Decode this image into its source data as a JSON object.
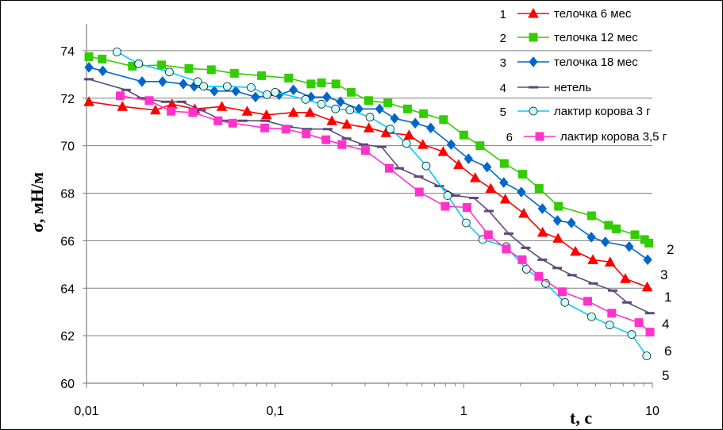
{
  "chart_data": {
    "type": "line",
    "xscale": "log",
    "xlim": [
      0.01,
      10
    ],
    "ylim": [
      60,
      75
    ],
    "xticks": [
      0.01,
      0.1,
      1,
      10
    ],
    "xtick_labels": [
      "0,01",
      "0,1",
      "1",
      "10"
    ],
    "yticks": [
      60,
      62,
      64,
      66,
      68,
      70,
      72,
      74
    ],
    "ytick_labels": [
      "60",
      "62",
      "64",
      "66",
      "68",
      "70",
      "72",
      "74"
    ],
    "xlabel": "t, c",
    "ylabel": "σ, мН/м",
    "grid": "horizontal",
    "legend_position": "top-right",
    "series": [
      {
        "id": "1",
        "name": "телочка 6 мес",
        "color": "#ff0000",
        "marker": "triangle",
        "end_label": "1",
        "points": [
          [
            0.0103,
            71.85
          ],
          [
            0.0155,
            71.65
          ],
          [
            0.0232,
            71.5
          ],
          [
            0.0284,
            71.75
          ],
          [
            0.0375,
            71.55
          ],
          [
            0.0522,
            71.65
          ],
          [
            0.0711,
            71.45
          ],
          [
            0.09,
            71.3
          ],
          [
            0.125,
            71.4
          ],
          [
            0.153,
            71.4
          ],
          [
            0.2,
            71.05
          ],
          [
            0.24,
            70.9
          ],
          [
            0.314,
            70.75
          ],
          [
            0.387,
            70.55
          ],
          [
            0.513,
            70.45
          ],
          [
            0.607,
            70.05
          ],
          [
            0.778,
            69.75
          ],
          [
            0.94,
            69.2
          ],
          [
            1.15,
            68.65
          ],
          [
            1.39,
            68.2
          ],
          [
            1.66,
            67.75
          ],
          [
            2.08,
            67.15
          ],
          [
            2.62,
            66.35
          ],
          [
            3.16,
            66.1
          ],
          [
            3.91,
            65.55
          ],
          [
            4.84,
            65.2
          ],
          [
            5.97,
            65.1
          ],
          [
            7.19,
            64.4
          ],
          [
            9.39,
            64.05
          ]
        ]
      },
      {
        "id": "2",
        "name": "телочка 12 мес",
        "color": "#33cc00",
        "marker": "square",
        "end_label": "2",
        "points": [
          [
            0.0103,
            73.75
          ],
          [
            0.0121,
            73.65
          ],
          [
            0.0175,
            73.35
          ],
          [
            0.025,
            73.4
          ],
          [
            0.0349,
            73.25
          ],
          [
            0.0459,
            73.2
          ],
          [
            0.0608,
            73.05
          ],
          [
            0.0847,
            72.95
          ],
          [
            0.118,
            72.85
          ],
          [
            0.155,
            72.6
          ],
          [
            0.176,
            72.65
          ],
          [
            0.21,
            72.6
          ],
          [
            0.253,
            72.25
          ],
          [
            0.313,
            71.9
          ],
          [
            0.396,
            71.8
          ],
          [
            0.503,
            71.55
          ],
          [
            0.612,
            71.35
          ],
          [
            0.781,
            71.1
          ],
          [
            1.0,
            70.45
          ],
          [
            1.22,
            70.0
          ],
          [
            1.64,
            69.25
          ],
          [
            2.05,
            68.8
          ],
          [
            2.51,
            68.2
          ],
          [
            3.18,
            67.45
          ],
          [
            4.76,
            67.05
          ],
          [
            5.86,
            66.65
          ],
          [
            6.44,
            66.5
          ],
          [
            8.08,
            66.25
          ],
          [
            9.09,
            66.05
          ],
          [
            9.58,
            65.9
          ]
        ]
      },
      {
        "id": "3",
        "name": "телочка 18 мес",
        "color": "#0066cc",
        "marker": "diamond",
        "end_label": "3",
        "points": [
          [
            0.0103,
            73.3
          ],
          [
            0.0122,
            73.15
          ],
          [
            0.0197,
            72.7
          ],
          [
            0.0253,
            72.7
          ],
          [
            0.0326,
            72.6
          ],
          [
            0.0372,
            72.5
          ],
          [
            0.0476,
            72.3
          ],
          [
            0.0619,
            72.3
          ],
          [
            0.0787,
            72.05
          ],
          [
            0.105,
            72.15
          ],
          [
            0.125,
            72.35
          ],
          [
            0.155,
            72.05
          ],
          [
            0.188,
            72.05
          ],
          [
            0.222,
            71.85
          ],
          [
            0.278,
            71.55
          ],
          [
            0.358,
            71.55
          ],
          [
            0.43,
            71.15
          ],
          [
            0.553,
            70.95
          ],
          [
            0.668,
            70.75
          ],
          [
            0.858,
            70.05
          ],
          [
            1.06,
            69.45
          ],
          [
            1.33,
            69.1
          ],
          [
            1.63,
            68.45
          ],
          [
            2.02,
            68.05
          ],
          [
            2.61,
            67.35
          ],
          [
            3.14,
            66.85
          ],
          [
            3.72,
            66.75
          ],
          [
            4.75,
            66.15
          ],
          [
            5.63,
            65.95
          ],
          [
            7.54,
            65.75
          ],
          [
            9.44,
            65.2
          ]
        ]
      },
      {
        "id": "4",
        "name": "нетель",
        "color": "#5e4a7a",
        "marker": "dash",
        "end_label": "4",
        "points": [
          [
            0.0103,
            72.8
          ],
          [
            0.0162,
            72.35
          ],
          [
            0.0196,
            72.0
          ],
          [
            0.0263,
            71.85
          ],
          [
            0.0319,
            71.85
          ],
          [
            0.0405,
            71.5
          ],
          [
            0.0531,
            71.05
          ],
          [
            0.0673,
            71.05
          ],
          [
            0.0885,
            71.05
          ],
          [
            0.117,
            70.8
          ],
          [
            0.148,
            70.7
          ],
          [
            0.19,
            70.7
          ],
          [
            0.239,
            70.3
          ],
          [
            0.294,
            70.05
          ],
          [
            0.367,
            69.95
          ],
          [
            0.455,
            69.05
          ],
          [
            0.577,
            68.7
          ],
          [
            0.741,
            68.3
          ],
          [
            0.904,
            67.9
          ],
          [
            1.13,
            67.8
          ],
          [
            1.36,
            67.25
          ],
          [
            1.73,
            66.3
          ],
          [
            2.13,
            65.7
          ],
          [
            2.61,
            65.2
          ],
          [
            3.13,
            64.85
          ],
          [
            3.75,
            64.55
          ],
          [
            4.86,
            64.2
          ],
          [
            6.17,
            63.9
          ],
          [
            7.34,
            63.4
          ],
          [
            9.69,
            62.95
          ]
        ]
      },
      {
        "id": "5",
        "name": "лактир корова 3 г",
        "color": "#00ccff",
        "marker": "circle",
        "end_label": "5",
        "points": [
          [
            0.0145,
            73.95
          ],
          [
            0.0189,
            73.45
          ],
          [
            0.0275,
            73.1
          ],
          [
            0.0389,
            72.7
          ],
          [
            0.0418,
            72.5
          ],
          [
            0.0557,
            72.5
          ],
          [
            0.0746,
            72.45
          ],
          [
            0.0905,
            72.15
          ],
          [
            0.1,
            72.25
          ],
          [
            0.145,
            71.95
          ],
          [
            0.176,
            71.75
          ],
          [
            0.209,
            71.55
          ],
          [
            0.249,
            71.5
          ],
          [
            0.318,
            71.2
          ],
          [
            0.408,
            70.7
          ],
          [
            0.497,
            70.1
          ],
          [
            0.632,
            69.15
          ],
          [
            0.821,
            67.9
          ],
          [
            1.03,
            66.75
          ],
          [
            1.26,
            66.05
          ],
          [
            1.68,
            65.75
          ],
          [
            2.15,
            64.8
          ],
          [
            2.72,
            64.2
          ],
          [
            3.44,
            63.4
          ],
          [
            4.76,
            62.8
          ],
          [
            5.94,
            62.45
          ],
          [
            7.77,
            62.05
          ],
          [
            9.33,
            61.15
          ]
        ]
      },
      {
        "id": "6",
        "name": "лактир корова 3,5 г",
        "color": "#ff33cc",
        "marker": "square",
        "end_label": "6",
        "points": [
          [
            0.0151,
            72.1
          ],
          [
            0.0215,
            71.9
          ],
          [
            0.0281,
            71.45
          ],
          [
            0.0366,
            71.4
          ],
          [
            0.0498,
            71.05
          ],
          [
            0.0596,
            70.95
          ],
          [
            0.0881,
            70.75
          ],
          [
            0.114,
            70.7
          ],
          [
            0.146,
            70.5
          ],
          [
            0.186,
            70.25
          ],
          [
            0.226,
            70.05
          ],
          [
            0.301,
            69.8
          ],
          [
            0.403,
            69.05
          ],
          [
            0.581,
            68.05
          ],
          [
            0.797,
            67.45
          ],
          [
            1.04,
            67.4
          ],
          [
            1.35,
            66.25
          ],
          [
            1.68,
            65.65
          ],
          [
            2.04,
            65.2
          ],
          [
            2.5,
            64.5
          ],
          [
            3.33,
            63.85
          ],
          [
            4.54,
            63.45
          ],
          [
            6.09,
            62.95
          ],
          [
            8.49,
            62.55
          ],
          [
            9.72,
            62.15
          ]
        ]
      }
    ]
  }
}
